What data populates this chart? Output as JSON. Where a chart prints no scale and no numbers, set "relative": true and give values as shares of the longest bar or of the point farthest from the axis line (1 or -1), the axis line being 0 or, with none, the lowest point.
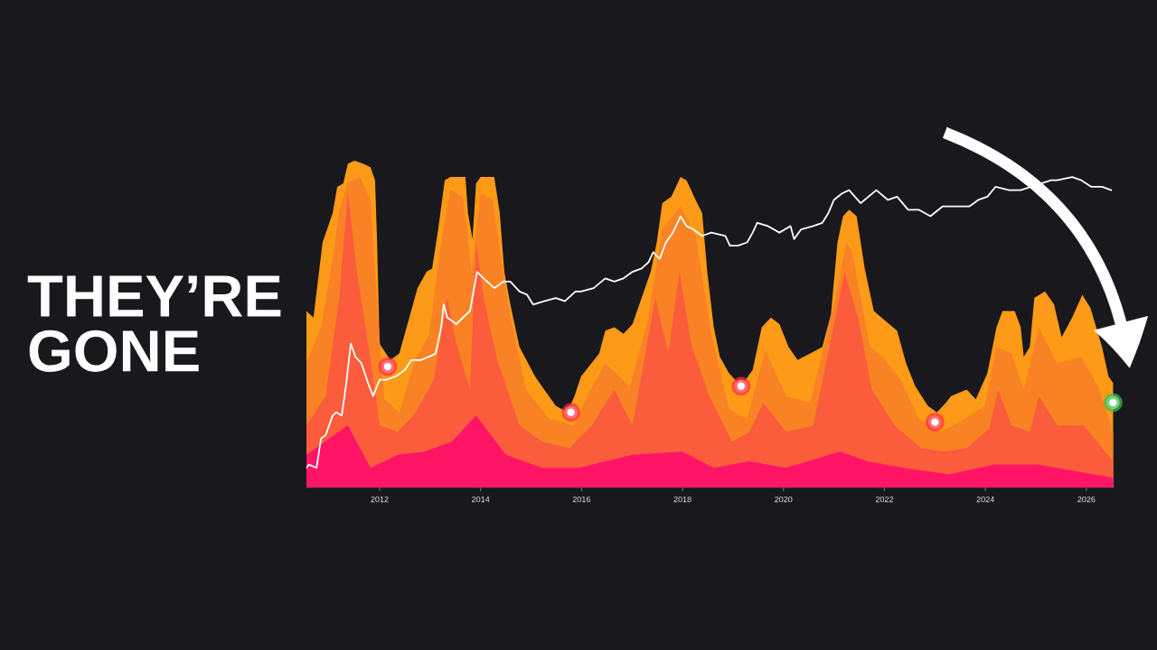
{
  "chart_data": {
    "type": "area",
    "title": "THEY’RE GONE",
    "relative": true,
    "xlim": [
      2010.55,
      2026.54
    ],
    "xticks": [
      2012,
      2014,
      2016,
      2018,
      2020,
      2022,
      2024,
      2026
    ],
    "series": [
      {
        "color": "#fd9a18",
        "x": [
          2010.55,
          2010.69,
          2010.87,
          2011.07,
          2011.16,
          2011.28,
          2011.37,
          2011.5,
          2011.68,
          2011.82,
          2011.91,
          2011.95,
          2012.0,
          2012.21,
          2012.39,
          2012.57,
          2012.75,
          2012.93,
          2013.04,
          2013.16,
          2013.29,
          2013.4,
          2013.7,
          2013.75,
          2013.84,
          2013.91,
          2014.0,
          2014.27,
          2014.38,
          2014.47,
          2014.59,
          2014.77,
          2015.08,
          2015.26,
          2015.49,
          2015.72,
          2015.86,
          2015.99,
          2016.35,
          2016.47,
          2016.65,
          2016.83,
          2017.01,
          2017.19,
          2017.37,
          2017.49,
          2017.6,
          2017.78,
          2017.96,
          2018.08,
          2018.26,
          2018.39,
          2018.49,
          2018.62,
          2018.74,
          2018.92,
          2019.16,
          2019.39,
          2019.57,
          2019.75,
          2019.92,
          2020.1,
          2020.28,
          2020.53,
          2020.77,
          2020.94,
          2021.07,
          2021.18,
          2021.3,
          2021.45,
          2021.61,
          2021.79,
          2022.02,
          2022.25,
          2022.43,
          2022.61,
          2022.86,
          2023.04,
          2023.22,
          2023.32,
          2023.63,
          2023.81,
          2024.04,
          2024.22,
          2024.34,
          2024.58,
          2024.7,
          2024.76,
          2024.88,
          2024.97,
          2025.18,
          2025.36,
          2025.51,
          2025.72,
          2025.92,
          2026.08,
          2026.31,
          2026.44,
          2026.53
        ],
        "values": [
          0.54,
          0.52,
          0.75,
          0.84,
          0.92,
          0.93,
          0.99,
          1.0,
          0.99,
          0.98,
          0.94,
          0.75,
          0.44,
          0.39,
          0.41,
          0.51,
          0.61,
          0.66,
          0.67,
          0.79,
          0.94,
          0.95,
          0.95,
          0.84,
          0.76,
          0.93,
          0.95,
          0.95,
          0.84,
          0.66,
          0.56,
          0.43,
          0.34,
          0.3,
          0.25,
          0.23,
          0.28,
          0.34,
          0.41,
          0.48,
          0.49,
          0.47,
          0.5,
          0.58,
          0.66,
          0.75,
          0.87,
          0.89,
          0.95,
          0.94,
          0.88,
          0.84,
          0.66,
          0.49,
          0.4,
          0.35,
          0.31,
          0.36,
          0.49,
          0.52,
          0.5,
          0.43,
          0.39,
          0.41,
          0.43,
          0.53,
          0.75,
          0.83,
          0.85,
          0.83,
          0.67,
          0.54,
          0.51,
          0.48,
          0.38,
          0.31,
          0.25,
          0.23,
          0.26,
          0.28,
          0.3,
          0.27,
          0.35,
          0.49,
          0.54,
          0.54,
          0.49,
          0.4,
          0.43,
          0.58,
          0.6,
          0.56,
          0.46,
          0.52,
          0.59,
          0.55,
          0.43,
          0.34,
          0.32
        ]
      },
      {
        "color": "#f98225",
        "x": [
          2010.55,
          2010.84,
          2011.07,
          2011.2,
          2011.37,
          2011.61,
          2011.82,
          2011.95,
          2012.09,
          2012.39,
          2012.68,
          2012.98,
          2013.22,
          2013.4,
          2013.65,
          2013.82,
          2014.0,
          2014.24,
          2014.54,
          2014.9,
          2015.36,
          2015.85,
          2016.11,
          2016.47,
          2016.96,
          2017.31,
          2017.6,
          2017.96,
          2018.26,
          2018.57,
          2018.92,
          2019.28,
          2019.64,
          2020.05,
          2020.53,
          2021.0,
          2021.25,
          2021.36,
          2021.71,
          2021.96,
          2022.32,
          2022.68,
          2023.09,
          2023.5,
          2023.99,
          2024.22,
          2024.52,
          2024.76,
          2025.06,
          2025.42,
          2025.9,
          2026.26,
          2026.53
        ],
        "values": [
          0.38,
          0.49,
          0.7,
          0.85,
          0.93,
          0.95,
          0.88,
          0.56,
          0.27,
          0.23,
          0.38,
          0.47,
          0.75,
          0.91,
          0.89,
          0.66,
          0.9,
          0.88,
          0.56,
          0.3,
          0.21,
          0.19,
          0.28,
          0.38,
          0.31,
          0.51,
          0.79,
          0.86,
          0.77,
          0.47,
          0.24,
          0.21,
          0.42,
          0.28,
          0.26,
          0.56,
          0.75,
          0.72,
          0.43,
          0.4,
          0.33,
          0.21,
          0.17,
          0.2,
          0.25,
          0.43,
          0.41,
          0.3,
          0.49,
          0.38,
          0.4,
          0.3,
          0.17
        ]
      },
      {
        "color": "#fa5c3c",
        "x": [
          2010.55,
          2010.93,
          2011.2,
          2011.37,
          2011.55,
          2011.82,
          2012.0,
          2012.36,
          2012.72,
          2013.07,
          2013.34,
          2013.52,
          2013.79,
          2013.91,
          2014.06,
          2014.33,
          2014.77,
          2015.22,
          2015.76,
          2016.2,
          2016.65,
          2017.01,
          2017.46,
          2017.72,
          2017.94,
          2018.17,
          2018.53,
          2018.98,
          2019.33,
          2019.6,
          2020.05,
          2020.59,
          2021.03,
          2021.21,
          2021.48,
          2021.75,
          2022.2,
          2022.73,
          2023.18,
          2023.63,
          2024.08,
          2024.25,
          2024.52,
          2024.88,
          2025.06,
          2025.42,
          2025.95,
          2026.53
        ],
        "values": [
          0.19,
          0.28,
          0.58,
          0.9,
          0.66,
          0.39,
          0.19,
          0.17,
          0.23,
          0.33,
          0.58,
          0.44,
          0.3,
          0.75,
          0.58,
          0.39,
          0.19,
          0.14,
          0.12,
          0.19,
          0.3,
          0.19,
          0.58,
          0.41,
          0.66,
          0.44,
          0.28,
          0.14,
          0.17,
          0.26,
          0.17,
          0.19,
          0.52,
          0.66,
          0.52,
          0.3,
          0.19,
          0.12,
          0.11,
          0.12,
          0.18,
          0.3,
          0.19,
          0.17,
          0.28,
          0.19,
          0.19,
          0.08
        ]
      },
      {
        "color": "#ff1466",
        "x": [
          2010.55,
          2011.37,
          2011.82,
          2012.36,
          2012.89,
          2013.43,
          2013.91,
          2014.5,
          2015.22,
          2015.94,
          2017.01,
          2017.99,
          2018.62,
          2019.33,
          2020.05,
          2021.12,
          2021.66,
          2022.38,
          2023.27,
          2024.16,
          2025.06,
          2026.53
        ],
        "values": [
          0.1,
          0.19,
          0.06,
          0.1,
          0.11,
          0.14,
          0.22,
          0.1,
          0.06,
          0.06,
          0.1,
          0.11,
          0.06,
          0.08,
          0.06,
          0.11,
          0.08,
          0.06,
          0.04,
          0.07,
          0.07,
          0.03
        ]
      },
      {
        "type": "line",
        "color": "#ffffff",
        "x": [
          2010.55,
          2010.6,
          2010.75,
          2010.84,
          2010.93,
          2011.07,
          2011.14,
          2011.25,
          2011.34,
          2011.43,
          2011.52,
          2011.64,
          2011.77,
          2011.87,
          2012.0,
          2012.13,
          2012.32,
          2012.5,
          2012.63,
          2012.81,
          2012.98,
          2013.11,
          2013.22,
          2013.27,
          2013.34,
          2013.52,
          2013.65,
          2013.79,
          2013.86,
          2013.93,
          2014.06,
          2014.27,
          2014.45,
          2014.59,
          2014.77,
          2014.92,
          2015.04,
          2015.26,
          2015.49,
          2015.67,
          2015.88,
          2015.99,
          2016.24,
          2016.47,
          2016.65,
          2016.83,
          2017.01,
          2017.19,
          2017.33,
          2017.42,
          2017.55,
          2017.67,
          2017.81,
          2017.96,
          2018.08,
          2018.21,
          2018.39,
          2018.57,
          2018.85,
          2018.94,
          2019.1,
          2019.28,
          2019.39,
          2019.48,
          2019.69,
          2019.92,
          2020.14,
          2020.21,
          2020.35,
          2020.59,
          2020.77,
          2020.89,
          2021.0,
          2021.16,
          2021.3,
          2021.53,
          2021.84,
          2022.07,
          2022.25,
          2022.47,
          2022.68,
          2022.91,
          2023.15,
          2023.4,
          2023.68,
          2023.86,
          2024.04,
          2024.2,
          2024.47,
          2024.7,
          2025.3,
          2025.42,
          2025.72,
          2025.9,
          2026.1,
          2026.31,
          2026.49
        ],
        "values": [
          0.06,
          0.07,
          0.06,
          0.15,
          0.16,
          0.22,
          0.23,
          0.22,
          0.32,
          0.44,
          0.4,
          0.38,
          0.32,
          0.28,
          0.33,
          0.33,
          0.34,
          0.36,
          0.39,
          0.39,
          0.4,
          0.41,
          0.49,
          0.56,
          0.52,
          0.5,
          0.52,
          0.54,
          0.6,
          0.66,
          0.64,
          0.61,
          0.63,
          0.63,
          0.6,
          0.59,
          0.56,
          0.57,
          0.58,
          0.57,
          0.6,
          0.6,
          0.61,
          0.64,
          0.63,
          0.64,
          0.66,
          0.67,
          0.69,
          0.72,
          0.7,
          0.75,
          0.78,
          0.83,
          0.8,
          0.79,
          0.77,
          0.78,
          0.77,
          0.74,
          0.74,
          0.75,
          0.78,
          0.81,
          0.8,
          0.78,
          0.8,
          0.76,
          0.79,
          0.8,
          0.81,
          0.84,
          0.88,
          0.9,
          0.91,
          0.87,
          0.91,
          0.88,
          0.89,
          0.85,
          0.85,
          0.83,
          0.86,
          0.86,
          0.86,
          0.88,
          0.89,
          0.92,
          0.91,
          0.91,
          0.94,
          0.94,
          0.95,
          0.94,
          0.92,
          0.92,
          0.91
        ]
      },
      {
        "type": "scatter",
        "marker": "circle",
        "colors": [
          "#ff2d3c",
          "#ff2d3c",
          "#ff2d3c",
          "#ff2d3c",
          "#36c24a"
        ],
        "x": [
          2012.16,
          2015.79,
          2019.16,
          2023.0,
          2026.53
        ],
        "values": [
          0.37,
          0.23,
          0.31,
          0.2,
          0.26
        ]
      }
    ]
  }
}
